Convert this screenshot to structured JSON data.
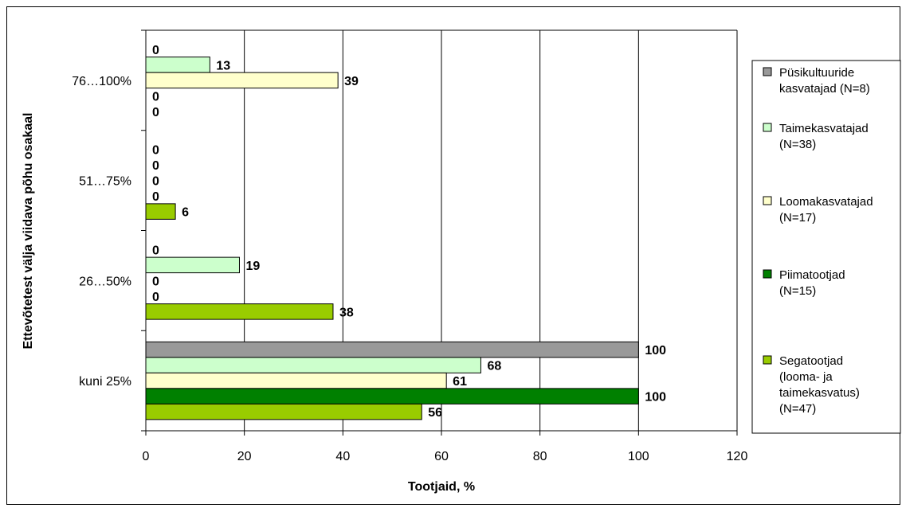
{
  "chart_data": {
    "type": "bar",
    "orientation": "horizontal",
    "xlabel": "Tootjaid, %",
    "ylabel": "Ettevõtetest välja viidava põhu osakaal",
    "xlim": [
      0,
      120
    ],
    "x_ticks": [
      "0",
      "20",
      "40",
      "60",
      "80",
      "100",
      "120"
    ],
    "grid": "vertical",
    "legend_position": "right",
    "categories": [
      "76…100%",
      "51…75%",
      "26…50%",
      "kuni 25%"
    ],
    "series": [
      {
        "name": "Püsikultuuride kasvatajad (N=8)",
        "color": "#999999",
        "values": [
          0,
          0,
          0,
          100
        ]
      },
      {
        "name": "Taimekasvatajad (N=38)",
        "color": "#ccffcc",
        "values": [
          13,
          0,
          19,
          68
        ]
      },
      {
        "name": "Loomakasvatajad (N=17)",
        "color": "#ffffcc",
        "values": [
          39,
          0,
          0,
          61
        ]
      },
      {
        "name": "Piimatootjad (N=15)",
        "color": "#008000",
        "values": [
          0,
          0,
          0,
          100
        ]
      },
      {
        "name": "Segatootjad (looma- ja taimekasvatus) (N=47)",
        "color": "#99cc00",
        "values": [
          0,
          6,
          38,
          56
        ]
      }
    ],
    "legend_lines": [
      [
        "Püsikultuuride",
        "kasvatajad (N=8)"
      ],
      [
        "Taimekasvatajad",
        "(N=38)"
      ],
      [
        "Loomakasvatajad",
        "(N=17)"
      ],
      [
        "Piimatootjad",
        "(N=15)"
      ],
      [
        "Segatootjad",
        "(looma- ja",
        "taimekasvatus)",
        "(N=47)"
      ]
    ]
  }
}
